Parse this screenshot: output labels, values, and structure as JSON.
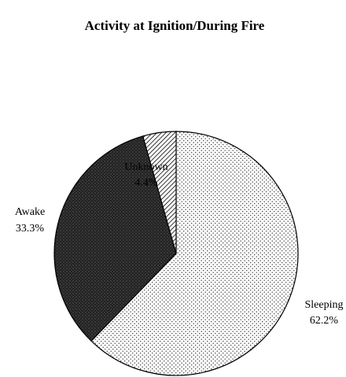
{
  "chart_data": {
    "type": "pie",
    "title": "Activity at Ignition/During Fire",
    "categories": [
      "Sleeping",
      "Awake",
      "Unknown"
    ],
    "values": [
      62.2,
      33.3,
      4.4
    ],
    "value_labels": [
      "62.2%",
      "33.3%",
      "4.4%"
    ]
  }
}
